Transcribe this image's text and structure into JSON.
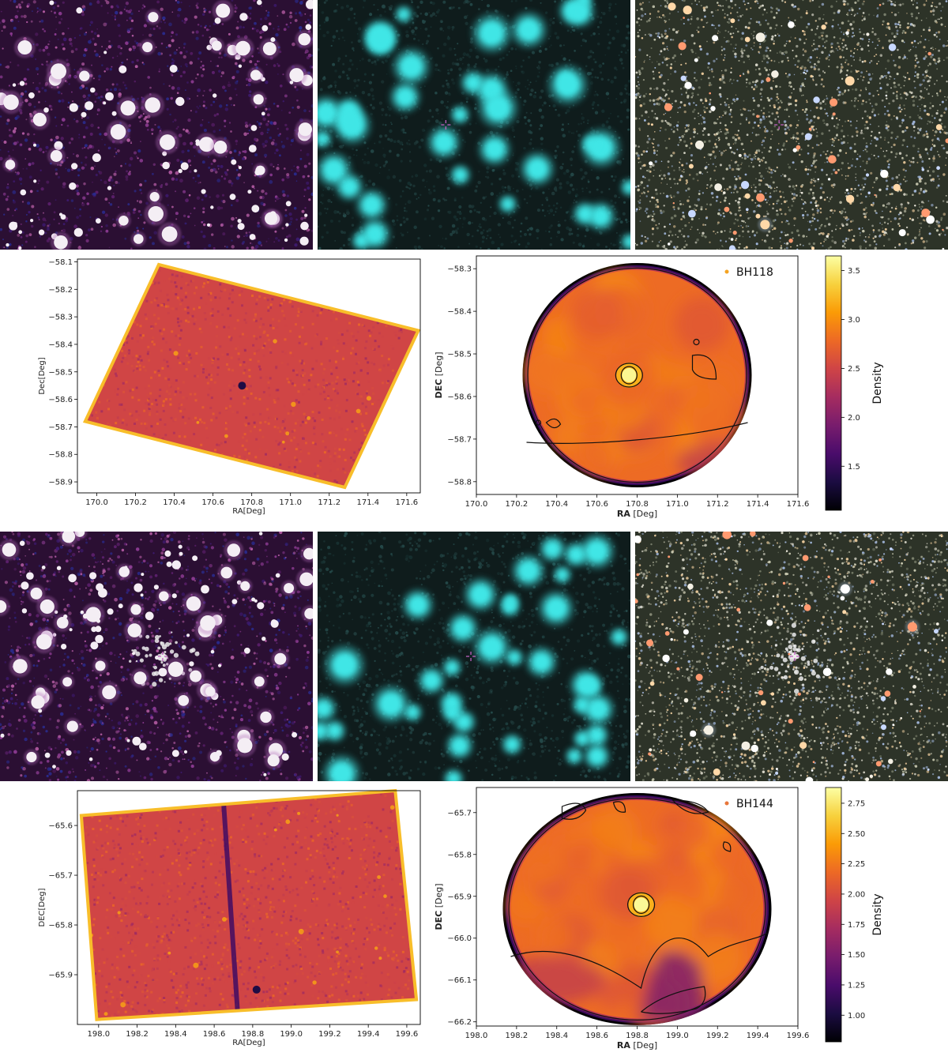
{
  "colors": {
    "inferno_ramp": [
      "#000004",
      "#1b0c41",
      "#4a0c6b",
      "#781c6d",
      "#a52c60",
      "#cf4446",
      "#ed6925",
      "#fb9b06",
      "#f7d13d",
      "#fcffa4"
    ],
    "survey_purple_bg": "#2b0f33",
    "wise_cyan": "#40e6e6",
    "wise_bg": "#0f1c1c",
    "optical_bg": "#2d3328",
    "marker_magenta": "#c060c0"
  },
  "rows": [
    {
      "cluster": "BH118",
      "image_panels": [
        {
          "kind": "survey-purple",
          "marker": false
        },
        {
          "kind": "wise-cyan",
          "marker": true
        },
        {
          "kind": "optical-color",
          "marker": true
        }
      ],
      "map_panel": {
        "xlabel": "RA[Deg]",
        "ylabel": "Dec[Deg]",
        "x_ticks": [
          "170.0",
          "170.2",
          "170.4",
          "170.6",
          "170.8",
          "171.0",
          "171.2",
          "171.4",
          "171.6"
        ],
        "y_ticks": [
          "−58.1",
          "−58.2",
          "−58.3",
          "−58.4",
          "−58.5",
          "−58.6",
          "−58.7",
          "−58.8",
          "−58.9"
        ]
      },
      "density_panel": {
        "xlabel_bold": "RA",
        "xlabel_rest": " [Deg]",
        "ylabel_bold": "DEC",
        "ylabel_rest": " [Deg]",
        "legend_label": "BH118",
        "legend_color": "#f4a321",
        "colorbar_label": "Density",
        "x_ticks": [
          "170.0",
          "170.2",
          "170.4",
          "170.6",
          "170.8",
          "171.0",
          "171.2",
          "171.4",
          "171.6"
        ],
        "y_ticks": [
          "−58.3",
          "−58.4",
          "−58.5",
          "−58.6",
          "−58.7",
          "−58.8"
        ],
        "colorbar_ticks": [
          "3.5",
          "3.0",
          "2.5",
          "2.0",
          "1.5"
        ]
      }
    },
    {
      "cluster": "BH144",
      "image_panels": [
        {
          "kind": "survey-purple",
          "marker": true
        },
        {
          "kind": "wise-cyan",
          "marker": true
        },
        {
          "kind": "optical-color",
          "marker": true
        }
      ],
      "map_panel": {
        "xlabel": "RA[Deg]",
        "ylabel": "DEC[Deg]",
        "x_ticks": [
          "198.0",
          "198.2",
          "198.4",
          "198.6",
          "198.8",
          "199.0",
          "199.2",
          "199.4",
          "199.6"
        ],
        "y_ticks": [
          "−65.6",
          "−65.7",
          "−65.8",
          "−65.9"
        ]
      },
      "density_panel": {
        "xlabel_bold": "RA",
        "xlabel_rest": " [Deg]",
        "ylabel_bold": "DEC",
        "ylabel_rest": " [Deg]",
        "legend_label": "BH144",
        "legend_color": "#e8763a",
        "colorbar_label": "Density",
        "x_ticks": [
          "198.0",
          "198.2",
          "198.4",
          "198.6",
          "198.8",
          "199.0",
          "199.2",
          "199.4",
          "199.6"
        ],
        "y_ticks": [
          "−65.7",
          "−65.8",
          "−65.9",
          "−66.0",
          "−66.1",
          "−66.2"
        ],
        "colorbar_ticks": [
          "2.75",
          "2.50",
          "2.25",
          "2.00",
          "1.75",
          "1.50",
          "1.25",
          "1.00"
        ]
      }
    }
  ],
  "chart_data": [
    {
      "type": "heatmap",
      "title": "",
      "xlabel": "RA[Deg]",
      "ylabel": "Dec[Deg]",
      "xlim": [
        169.9,
        171.67
      ],
      "ylim": [
        -58.94,
        -58.09
      ],
      "footprint_corners_ra_dec": [
        [
          170.32,
          -58.11
        ],
        [
          171.66,
          -58.35
        ],
        [
          171.28,
          -58.92
        ],
        [
          169.94,
          -58.68
        ]
      ],
      "local_minimum_ra_dec": [
        170.75,
        -58.55
      ],
      "grid": false
    },
    {
      "type": "heatmap",
      "title": "",
      "xlabel": "RA [Deg]",
      "ylabel": "DEC [Deg]",
      "xlim": [
        170.0,
        171.6
      ],
      "ylim": [
        -58.83,
        -58.27
      ],
      "legend": {
        "entries": [
          "BH118"
        ],
        "placement": "top-right"
      },
      "colorbar": {
        "label": "Density",
        "range": [
          1.05,
          3.65
        ],
        "ticks": [
          1.5,
          2.0,
          2.5,
          3.0,
          3.5
        ]
      },
      "peak_ra_dec": [
        170.76,
        -58.55
      ],
      "peak_density": 3.6,
      "grid": false
    },
    {
      "type": "heatmap",
      "title": "",
      "xlabel": "RA[Deg]",
      "ylabel": "DEC[Deg]",
      "xlim": [
        197.89,
        199.67
      ],
      "ylim": [
        -66.0,
        -65.53
      ],
      "footprint_corners_ra_dec": [
        [
          197.91,
          -65.58
        ],
        [
          199.54,
          -65.53
        ],
        [
          199.65,
          -65.95
        ],
        [
          197.99,
          -65.99
        ]
      ],
      "dark_stripe_ra": [
        198.62,
        198.73
      ],
      "local_minimum_ra_dec": [
        198.82,
        -65.93
      ],
      "grid": false
    },
    {
      "type": "heatmap",
      "title": "",
      "xlabel": "RA [Deg]",
      "ylabel": "DEC [Deg]",
      "xlim": [
        198.0,
        199.6
      ],
      "ylim": [
        -66.21,
        -65.64
      ],
      "legend": {
        "entries": [
          "BH144"
        ],
        "placement": "top-right"
      },
      "colorbar": {
        "label": "Density",
        "range": [
          0.78,
          2.88
        ],
        "ticks": [
          1.0,
          1.25,
          1.5,
          1.75,
          2.0,
          2.25,
          2.5,
          2.75
        ]
      },
      "peak_ra_dec": [
        198.82,
        -65.92
      ],
      "peak_density": 2.85,
      "grid": false
    }
  ]
}
